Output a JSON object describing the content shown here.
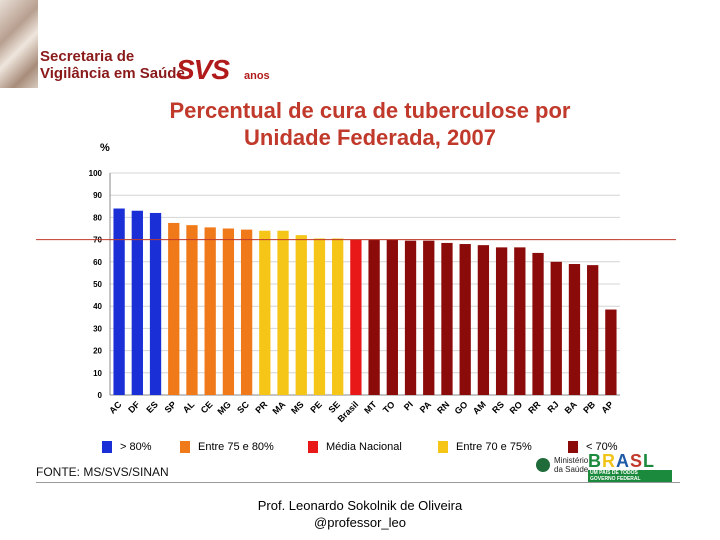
{
  "header": {
    "secretaria_line1": "Secretaria de",
    "secretaria_line2": "Vigilância em Saúde",
    "svs_mark": "SVS",
    "svs_anos": "anos"
  },
  "chart_data": {
    "type": "bar",
    "title_line1": "Percentual de cura de tuberculose por",
    "title_line2": "Unidade Federada, 2007",
    "ylabel": "%",
    "xlabel": "",
    "ylim": [
      0,
      100
    ],
    "yticks": [
      0,
      10,
      20,
      30,
      40,
      50,
      60,
      70,
      80,
      90,
      100
    ],
    "categories": [
      "AC",
      "DF",
      "ES",
      "SP",
      "AL",
      "CE",
      "MG",
      "SC",
      "PR",
      "MA",
      "MS",
      "PE",
      "SE",
      "Brasil",
      "MT",
      "TO",
      "PI",
      "PA",
      "RN",
      "GO",
      "AM",
      "RS",
      "RO",
      "RR",
      "RJ",
      "BA",
      "PB",
      "AP"
    ],
    "values": [
      84,
      83,
      82,
      77.5,
      76.5,
      75.5,
      75,
      74.5,
      74,
      74,
      72,
      70.5,
      70.5,
      70,
      70,
      70,
      69.5,
      69.5,
      68.5,
      68,
      67.5,
      66.5,
      66.5,
      64,
      60,
      59,
      58.5,
      38.5
    ],
    "bar_groups": [
      "blue",
      "blue",
      "blue",
      "orange",
      "orange",
      "orange",
      "orange",
      "orange",
      "yellow",
      "yellow",
      "yellow",
      "yellow",
      "yellow",
      "red",
      "darkred",
      "darkred",
      "darkred",
      "darkred",
      "darkred",
      "darkred",
      "darkred",
      "darkred",
      "darkred",
      "darkred",
      "darkred",
      "darkred",
      "darkred",
      "darkred"
    ],
    "reference_line": {
      "value": 70,
      "color": "#c0392b"
    },
    "grid": true,
    "colors": {
      "blue": "#1a2fd6",
      "orange": "#f07a1a",
      "yellow": "#f5c518",
      "red": "#e81818",
      "darkred": "#8b0a0a"
    },
    "legend": [
      {
        "label": "> 80%",
        "group": "blue"
      },
      {
        "label": "Entre 75 e 80%",
        "group": "orange"
      },
      {
        "label": "Média Nacional",
        "group": "red"
      },
      {
        "label": "Entre 70 e 75%",
        "group": "yellow"
      },
      {
        "label": "< 70%",
        "group": "darkred"
      }
    ]
  },
  "source": "FONTE: MS/SVS/SINAN",
  "ministerio": {
    "line1": "Ministério",
    "line2": "da Saúde"
  },
  "brasil_logo": {
    "letters": [
      "B",
      "R",
      "A",
      "S",
      "L"
    ],
    "tagline": "UM PAÍS DE TODOS",
    "governo": "GOVERNO FEDERAL"
  },
  "footer": {
    "line1": "Prof. Leonardo Sokolnik de Oliveira",
    "line2": "@professor_leo"
  }
}
